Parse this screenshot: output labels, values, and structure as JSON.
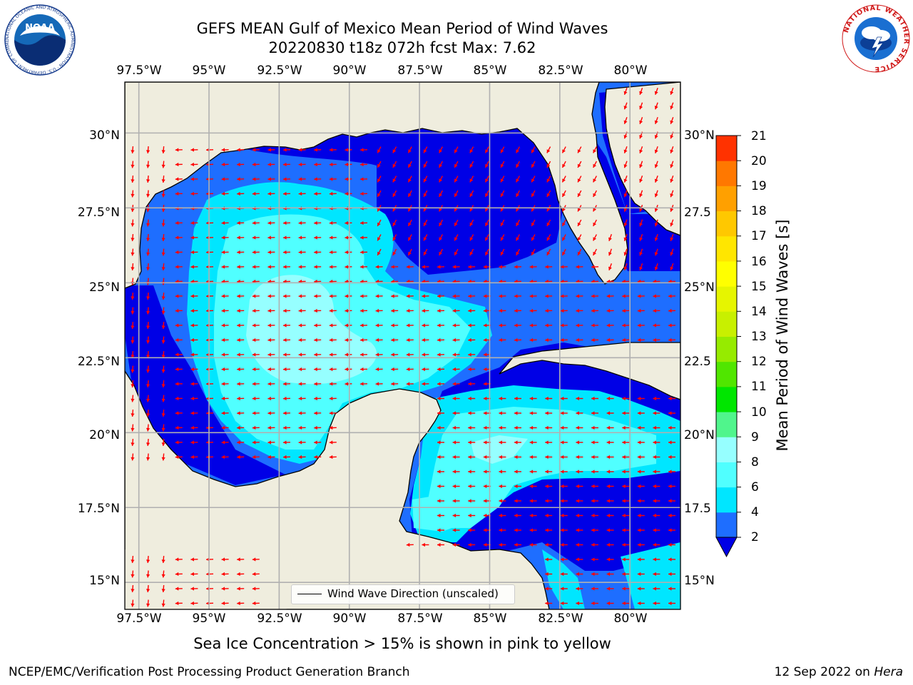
{
  "header": {
    "title_line1": "GEFS MEAN Gulf of Mexico Mean Period of Wind Waves",
    "title_line2": "20220830 t18z 072h fcst   Max: 7.62"
  },
  "logos": {
    "noaa_text": "NOAA",
    "noaa_ring_text": "NATIONAL OCEANIC AND ATMOSPHERIC ADMINISTRATION · U.S. DEPARTMENT OF COMMERCE",
    "nws_ring_text": "NATIONAL WEATHER SERVICE"
  },
  "map": {
    "lon_range": [
      -98.0,
      -78.2
    ],
    "lat_range": [
      14.1,
      31.7
    ],
    "lon_ticks": [
      "97.5°W",
      "95°W",
      "92.5°W",
      "90°W",
      "87.5°W",
      "85°W",
      "82.5°W",
      "80°W"
    ],
    "lat_ticks_left": [
      "30°N",
      "27.5°N",
      "25°N",
      "22.5°N",
      "20°N",
      "17.5°N",
      "15°N"
    ],
    "lat_ticks_right": [
      "30°N",
      "27.5",
      "25°N",
      "22.5",
      "20°N",
      "17.5",
      "15°N"
    ],
    "colors": {
      "land": "#efedde",
      "ocean_deep": "#0000e6",
      "arrow": "#ff0000",
      "grid": "#b0b0b0"
    }
  },
  "legend": {
    "label": "Wind Wave Direction (unscaled)"
  },
  "colorbar": {
    "title": "Mean Period of Wind Waves [s]",
    "labels": [
      "2",
      "4",
      "6",
      "8",
      "9",
      "10",
      "11",
      "12",
      "13",
      "14",
      "15",
      "16",
      "17",
      "18",
      "19",
      "20",
      "21"
    ],
    "colors": [
      "#1e6eff",
      "#00e6ff",
      "#50ffff",
      "#96ffff",
      "#50f58c",
      "#00e600",
      "#50e600",
      "#96eb00",
      "#c8f000",
      "#e6f500",
      "#ffff00",
      "#ffe600",
      "#ffc800",
      "#ffa000",
      "#ff7800",
      "#ff3200"
    ],
    "underflow_color": "#0000e6"
  },
  "note": "Sea Ice Concentration > 15% is shown in pink to yellow",
  "footer": {
    "left": "NCEP/EMC/Verification Post Processing Product Generation Branch",
    "date": "12 Sep 2022 on ",
    "host": "Hera"
  }
}
